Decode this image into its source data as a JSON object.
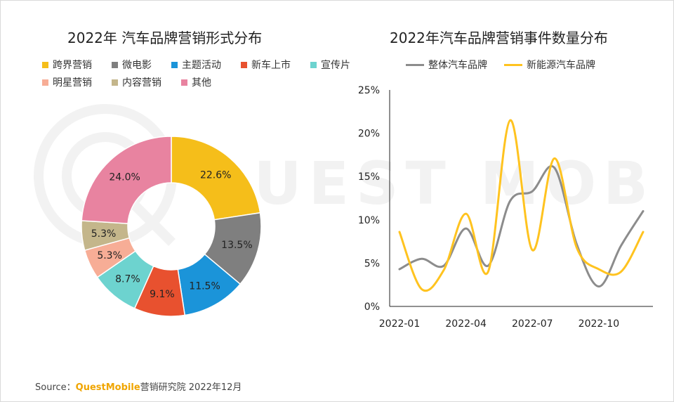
{
  "watermark": {
    "text": "QUEST MOBILE"
  },
  "chart_data": [
    {
      "type": "pie",
      "title": "2022年 汽车品牌营销形式分布",
      "donut": true,
      "categories": [
        "跨界营销",
        "微电影",
        "主题活动",
        "新车上市",
        "宣传片",
        "明星营销",
        "内容营销",
        "其他"
      ],
      "values": [
        22.6,
        13.5,
        11.5,
        9.1,
        8.7,
        5.3,
        5.3,
        24.0
      ],
      "value_labels": [
        "22.6%",
        "13.5%",
        "11.5%",
        "9.1%",
        "8.7%",
        "5.3%",
        "5.3%",
        "24.0%"
      ],
      "colors": [
        "#f5be1a",
        "#7f7f7f",
        "#1b94d9",
        "#e8512f",
        "#6dd3cf",
        "#f7ad96",
        "#c4b68b",
        "#e883a0"
      ]
    },
    {
      "type": "line",
      "title": "2022年汽车品牌营销事件数量分布",
      "x": [
        "2022-01",
        "2022-02",
        "2022-03",
        "2022-04",
        "2022-05",
        "2022-06",
        "2022-07",
        "2022-08",
        "2022-09",
        "2022-10",
        "2022-11",
        "2022-12"
      ],
      "series": [
        {
          "name": "整体汽车品牌",
          "values": [
            4.3,
            5.5,
            4.7,
            9.0,
            4.7,
            12.2,
            13.3,
            16.0,
            7.2,
            2.3,
            7.0,
            11.0
          ],
          "color": "#8c8c8c"
        },
        {
          "name": "新能源汽车品牌",
          "values": [
            8.6,
            2.0,
            4.2,
            10.7,
            4.0,
            21.5,
            6.5,
            17.1,
            6.8,
            4.3,
            4.0,
            8.6
          ],
          "color": "#ffc31f"
        }
      ],
      "xticks": [
        "2022-01",
        "2022-04",
        "2022-07",
        "2022-10"
      ],
      "yticks": [
        "0%",
        "5%",
        "10%",
        "15%",
        "20%",
        "25%"
      ],
      "ylim": [
        0,
        25
      ]
    }
  ],
  "source": {
    "prefix": "Source：",
    "brand": "QuestMobile",
    "suffix": "营销研究院 2022年12月"
  }
}
